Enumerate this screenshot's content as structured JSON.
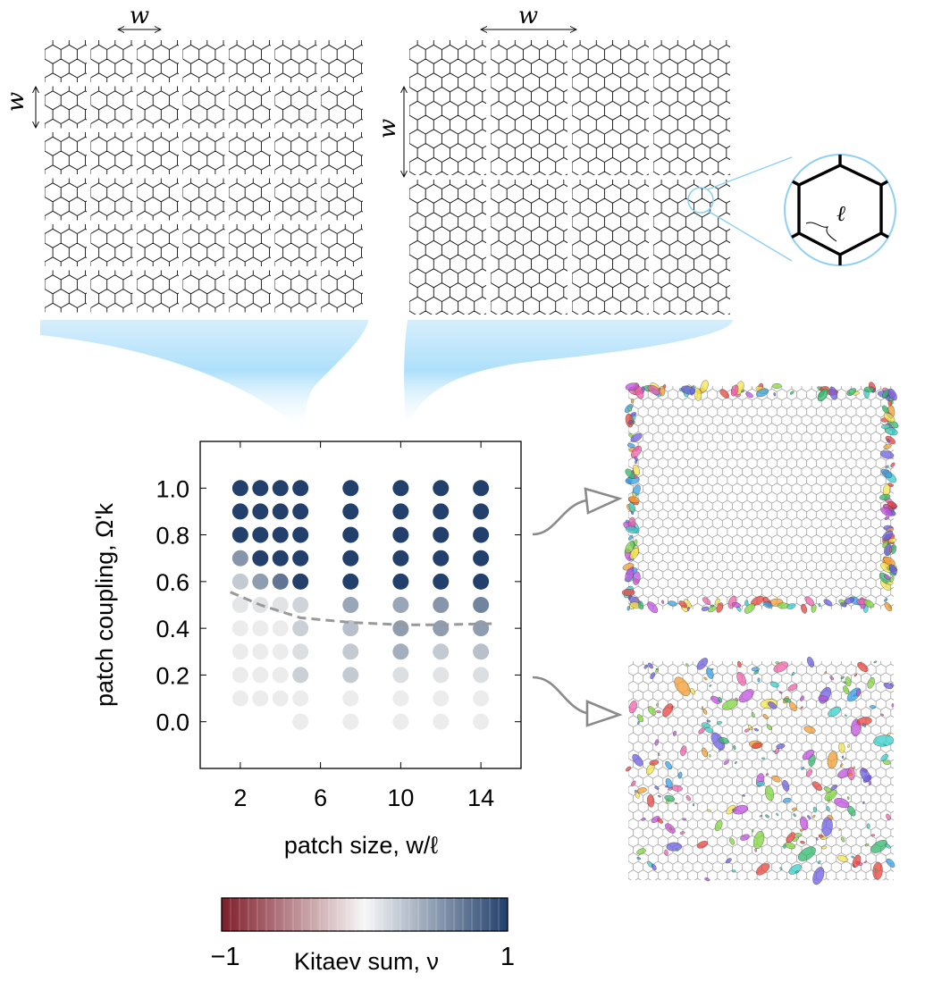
{
  "labels": {
    "w_symbol": "w",
    "ell_symbol": "ℓ"
  },
  "chart_data": {
    "type": "scatter",
    "xlabel": "patch size, w/ℓ",
    "ylabel": "patch coupling, Ω'k",
    "x_ticks": [
      "2",
      "6",
      "10",
      "14"
    ],
    "y_ticks": [
      "0.0",
      "0.2",
      "0.4",
      "0.6",
      "0.8",
      "1.0"
    ],
    "xlim": [
      0,
      16
    ],
    "ylim": [
      -0.2,
      1.2
    ],
    "x": [
      2,
      3,
      4,
      5,
      7.5,
      10,
      12,
      14
    ],
    "columns": [
      {
        "x": 2,
        "points": [
          [
            0.1,
            0
          ],
          [
            0.2,
            0
          ],
          [
            0.3,
            0
          ],
          [
            0.4,
            0
          ],
          [
            0.5,
            0.02
          ],
          [
            0.6,
            0.15
          ],
          [
            0.7,
            0.45
          ],
          [
            0.8,
            1
          ],
          [
            0.9,
            1
          ],
          [
            1.0,
            1
          ]
        ]
      },
      {
        "x": 3,
        "points": [
          [
            0.1,
            0
          ],
          [
            0.2,
            0
          ],
          [
            0.3,
            0
          ],
          [
            0.4,
            0
          ],
          [
            0.5,
            0.03
          ],
          [
            0.6,
            0.4
          ],
          [
            0.7,
            1
          ],
          [
            0.8,
            1
          ],
          [
            0.9,
            1
          ],
          [
            1.0,
            1
          ]
        ]
      },
      {
        "x": 4,
        "points": [
          [
            0.1,
            0
          ],
          [
            0.2,
            0
          ],
          [
            0.3,
            0
          ],
          [
            0.4,
            0
          ],
          [
            0.5,
            0.03
          ],
          [
            0.6,
            0.65
          ],
          [
            0.7,
            1
          ],
          [
            0.8,
            1
          ],
          [
            0.9,
            1
          ],
          [
            1.0,
            1
          ]
        ]
      },
      {
        "x": 5,
        "points": [
          [
            0.0,
            0
          ],
          [
            0.1,
            0
          ],
          [
            0.2,
            0.12
          ],
          [
            0.3,
            0.05
          ],
          [
            0.4,
            0.12
          ],
          [
            0.5,
            0.1
          ],
          [
            0.6,
            1
          ],
          [
            0.7,
            1
          ],
          [
            0.8,
            1
          ],
          [
            0.9,
            1
          ],
          [
            1.0,
            1
          ]
        ]
      },
      {
        "x": 7.5,
        "points": [
          [
            0.0,
            0
          ],
          [
            0.1,
            0
          ],
          [
            0.2,
            0.15
          ],
          [
            0.3,
            0.15
          ],
          [
            0.4,
            0.2
          ],
          [
            0.5,
            0.35
          ],
          [
            0.6,
            1
          ],
          [
            0.7,
            1
          ],
          [
            0.8,
            1
          ],
          [
            0.9,
            1
          ],
          [
            1.0,
            1
          ]
        ]
      },
      {
        "x": 10,
        "points": [
          [
            0.0,
            0
          ],
          [
            0.1,
            0
          ],
          [
            0.2,
            0.05
          ],
          [
            0.3,
            0.3
          ],
          [
            0.4,
            0.4
          ],
          [
            0.5,
            0.35
          ],
          [
            0.6,
            1
          ],
          [
            0.7,
            1
          ],
          [
            0.8,
            1
          ],
          [
            0.9,
            1
          ],
          [
            1.0,
            1
          ]
        ]
      },
      {
        "x": 12,
        "points": [
          [
            0.0,
            0
          ],
          [
            0.1,
            0
          ],
          [
            0.2,
            0.03
          ],
          [
            0.3,
            0.15
          ],
          [
            0.4,
            0.4
          ],
          [
            0.5,
            0.45
          ],
          [
            0.6,
            1
          ],
          [
            0.7,
            1
          ],
          [
            0.8,
            1
          ],
          [
            0.9,
            1
          ],
          [
            1.0,
            1
          ]
        ]
      },
      {
        "x": 14,
        "points": [
          [
            0.0,
            0
          ],
          [
            0.1,
            0
          ],
          [
            0.2,
            0.05
          ],
          [
            0.3,
            0.2
          ],
          [
            0.4,
            0.4
          ],
          [
            0.5,
            0.55
          ],
          [
            0.6,
            1
          ],
          [
            0.7,
            1
          ],
          [
            0.8,
            1
          ],
          [
            0.9,
            1
          ],
          [
            1.0,
            1
          ]
        ]
      }
    ],
    "boundary": [
      [
        1.5,
        0.555
      ],
      [
        3,
        0.5
      ],
      [
        5,
        0.445
      ],
      [
        7.5,
        0.425
      ],
      [
        10,
        0.415
      ],
      [
        12,
        0.415
      ],
      [
        14.8,
        0.42
      ]
    ],
    "colorbar": {
      "label": "Kitaev sum, ν",
      "min_label": "−1",
      "max_label": "1",
      "range": [
        -1,
        1
      ],
      "color_neg": "#7f1d2a",
      "color_mid": "#f7f7f7",
      "color_pos": "#22406b"
    },
    "grid": false
  },
  "colors": {
    "funnel": "#aee0fb",
    "lattice": "#111111",
    "zoom": "#8fd0f2",
    "arrow": "#8a8a8a",
    "ellipse_palette": [
      "#e8413b",
      "#f39c2f",
      "#f5e44b",
      "#7fd63c",
      "#2fb86a",
      "#33a0e8",
      "#6b5ce0",
      "#c24fe0",
      "#ef5fa8",
      "#34d0c9"
    ]
  }
}
